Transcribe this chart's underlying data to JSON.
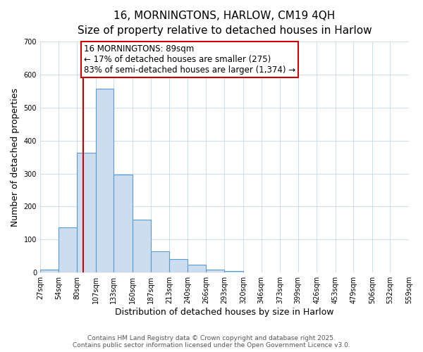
{
  "title_line1": "16, MORNINGTONS, HARLOW, CM19 4QH",
  "title_line2": "Size of property relative to detached houses in Harlow",
  "xlabel": "Distribution of detached houses by size in Harlow",
  "ylabel": "Number of detached properties",
  "annotation_text": "16 MORNINGTONS: 89sqm\n← 17% of detached houses are smaller (275)\n83% of semi-detached houses are larger (1,374) →",
  "footer_line1": "Contains HM Land Registry data © Crown copyright and database right 2025.",
  "footer_line2": "Contains public sector information licensed under the Open Government Licence v3.0.",
  "bar_left_edges": [
    27,
    54,
    80,
    107,
    133,
    160,
    187,
    213,
    240,
    266,
    293,
    320,
    346,
    373,
    399,
    426,
    453,
    479,
    506,
    532
  ],
  "bar_widths": [
    27,
    26,
    27,
    26,
    27,
    27,
    26,
    27,
    26,
    27,
    27,
    26,
    27,
    26,
    27,
    27,
    26,
    27,
    26,
    27
  ],
  "bar_heights": [
    8,
    138,
    363,
    557,
    298,
    160,
    65,
    40,
    23,
    10,
    5,
    0,
    0,
    0,
    0,
    0,
    0,
    0,
    0,
    0
  ],
  "bar_color": "#ccddf0",
  "bar_edge_color": "#5b9bd5",
  "vline_x": 89,
  "vline_color": "#cc0000",
  "annotation_box_color": "#cc0000",
  "ylim": [
    0,
    700
  ],
  "xlim": [
    27,
    559
  ],
  "yticks": [
    0,
    100,
    200,
    300,
    400,
    500,
    600,
    700
  ],
  "xtick_labels": [
    "27sqm",
    "54sqm",
    "80sqm",
    "107sqm",
    "133sqm",
    "160sqm",
    "187sqm",
    "213sqm",
    "240sqm",
    "266sqm",
    "293sqm",
    "320sqm",
    "346sqm",
    "373sqm",
    "399sqm",
    "426sqm",
    "453sqm",
    "479sqm",
    "506sqm",
    "532sqm",
    "559sqm"
  ],
  "xtick_positions": [
    27,
    54,
    80,
    107,
    133,
    160,
    187,
    213,
    240,
    266,
    293,
    320,
    346,
    373,
    399,
    426,
    453,
    479,
    506,
    532,
    559
  ],
  "background_color": "#ffffff",
  "grid_color": "#c5d8ef",
  "title_fontsize": 11,
  "subtitle_fontsize": 10,
  "axis_label_fontsize": 9,
  "tick_fontsize": 7,
  "annotation_fontsize": 8.5,
  "footer_fontsize": 6.5
}
